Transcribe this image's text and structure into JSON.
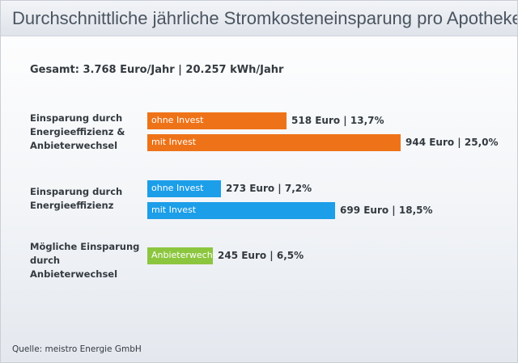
{
  "title": "Durchschnittliche jährliche Stromkosteneinsparung pro Apotheke",
  "total": "Gesamt: 3.768 Euro/Jahr | 20.257 kWh/Jahr",
  "source": "Quelle: meistro Energie GmbH",
  "colors": {
    "orange": "#ee7318",
    "blue": "#1c9ee8",
    "green": "#8cc63f"
  },
  "chart_data": {
    "type": "bar",
    "orientation": "horizontal",
    "title": "Durchschnittliche jährliche Stromkosteneinsparung pro Apotheke",
    "unit": "Euro",
    "groups": [
      {
        "label": "Einsparung durch Energieeffizienz & Anbieterwechsel",
        "color": "#ee7318",
        "bars": [
          {
            "label": "ohne Invest",
            "value": 518,
            "value_label": "518 Euro | 13,7%"
          },
          {
            "label": "mit Invest",
            "value": 944,
            "value_label": "944 Euro | 25,0%"
          }
        ]
      },
      {
        "label": "Einsparung durch Energieeffizienz",
        "color": "#1c9ee8",
        "bars": [
          {
            "label": "ohne Invest",
            "value": 273,
            "value_label": "273 Euro | 7,2%"
          },
          {
            "label": "mit Invest",
            "value": 699,
            "value_label": "699 Euro | 18,5%"
          }
        ]
      },
      {
        "label": "Mögliche Einsparung durch Anbieterwechsel",
        "color": "#8cc63f",
        "bars": [
          {
            "label": "Anbieterwechsel",
            "value": 245,
            "value_label": "245 Euro | 6,5%"
          }
        ]
      }
    ]
  }
}
